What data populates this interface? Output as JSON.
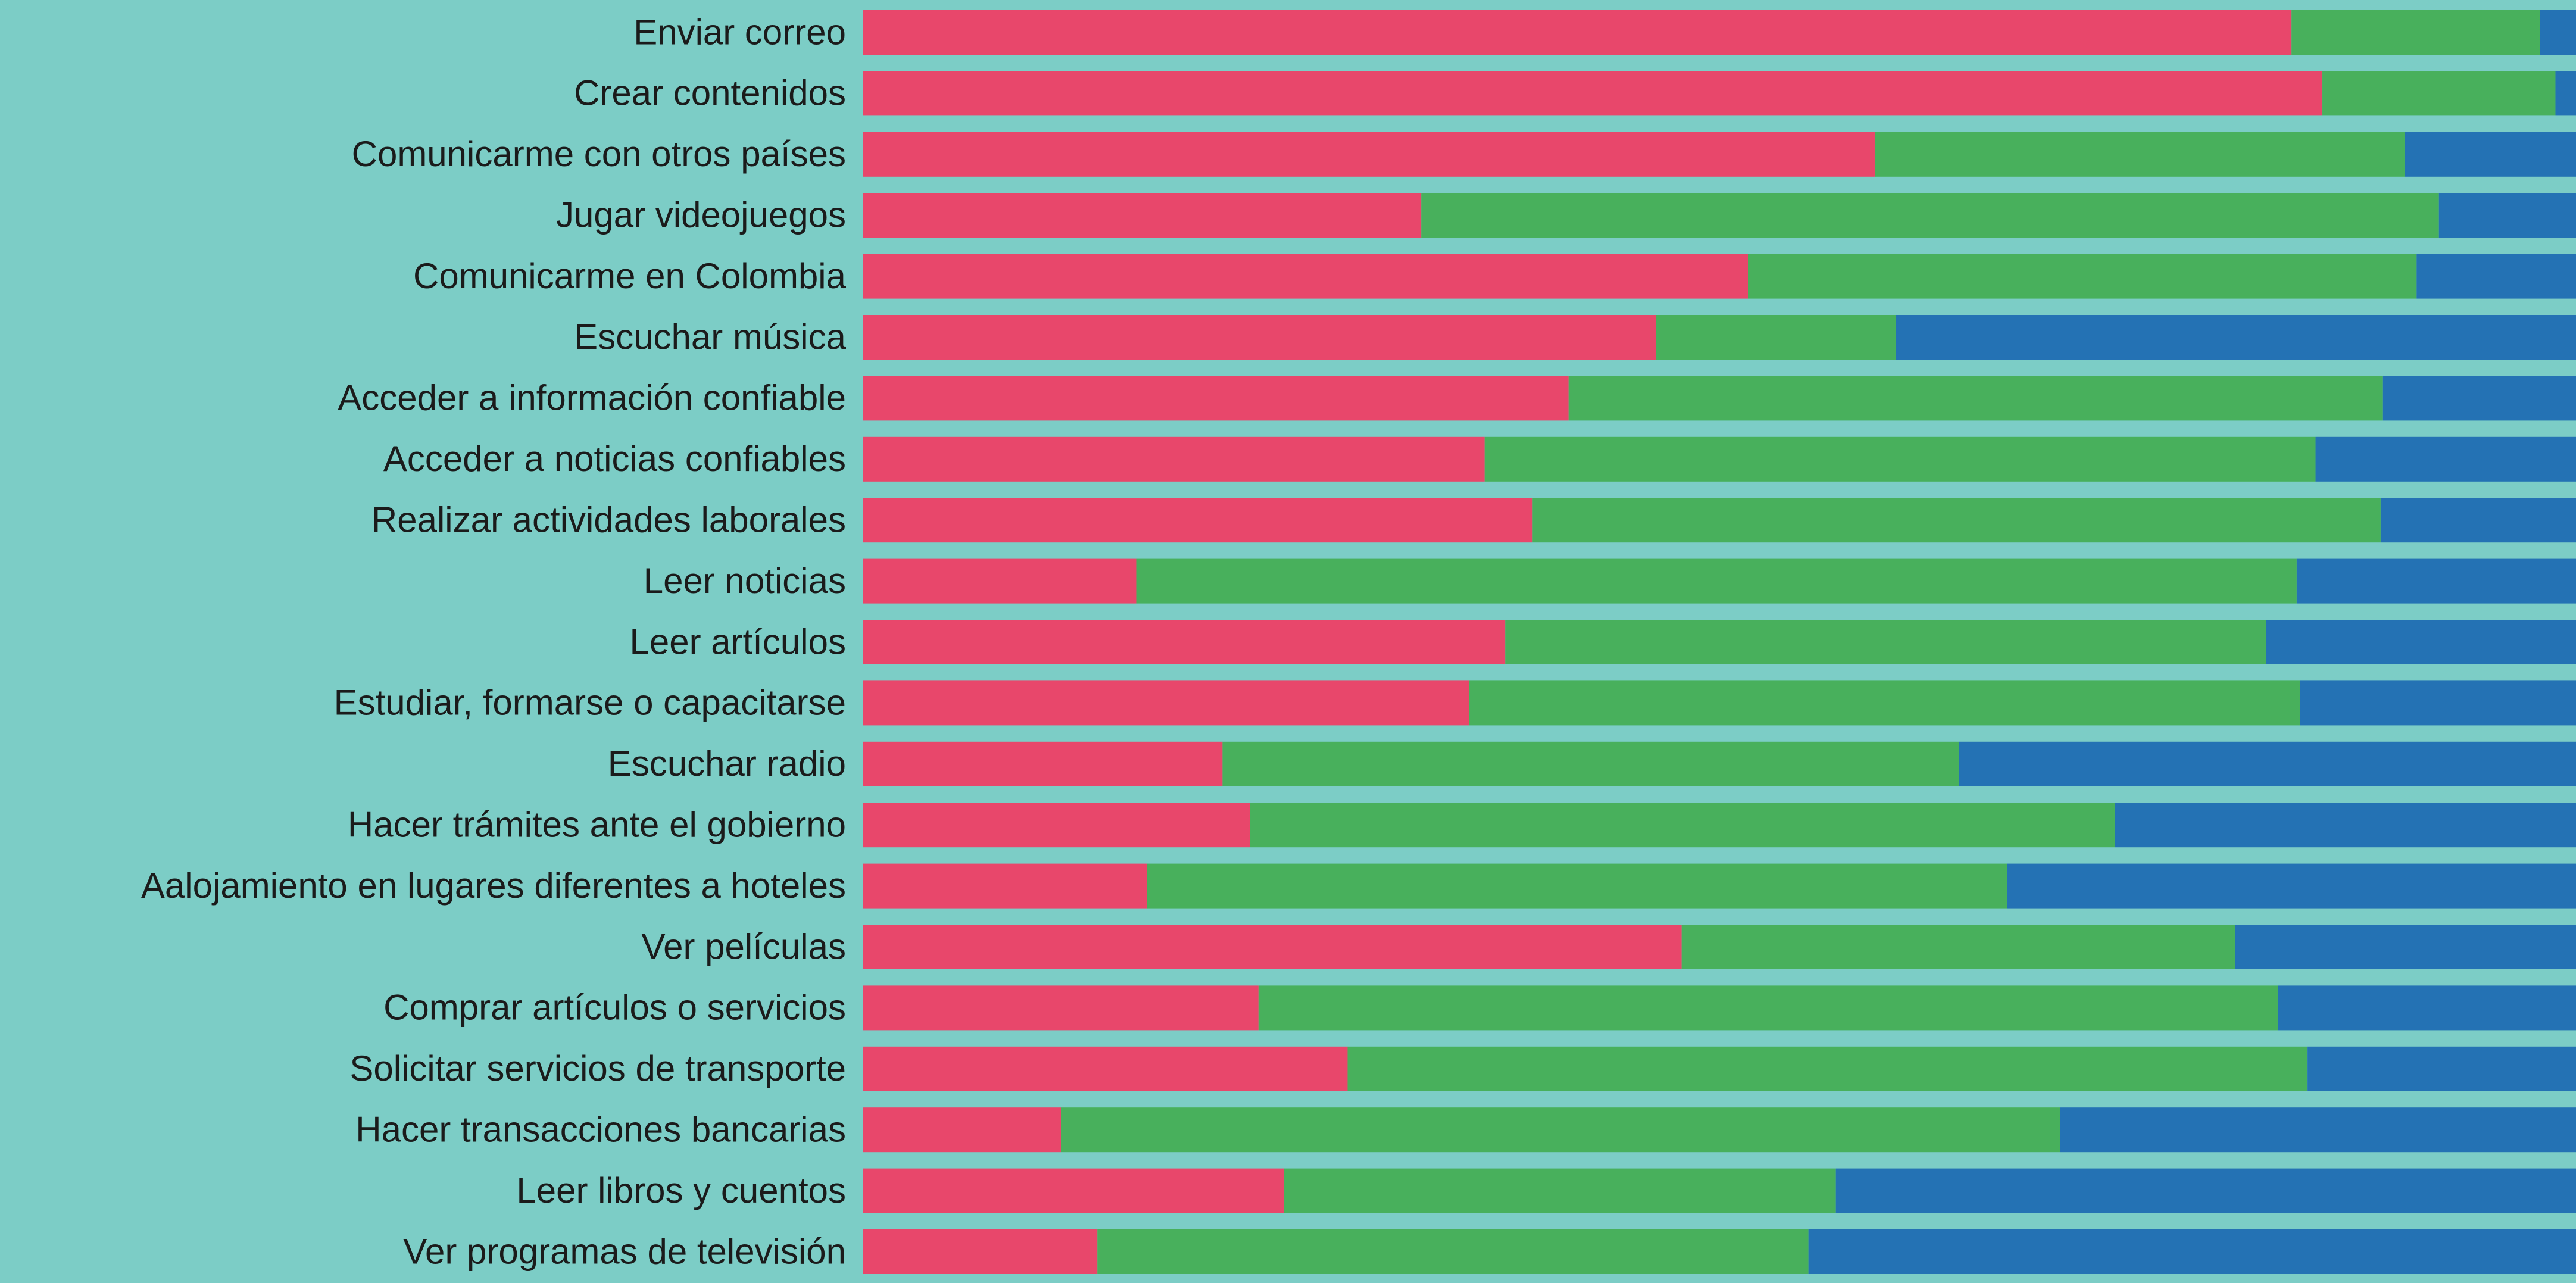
{
  "chart_data": {
    "type": "stacked-barh",
    "categories": [
      "Enviar correo",
      "Crear contenidos",
      "Comunicarme con otros países",
      "Jugar videojuegos",
      "Comunicarme en Colombia",
      "Escuchar música",
      "Acceder a información confiable",
      "Acceder a noticias confiables",
      "Realizar actividades laborales",
      "Leer noticias",
      "Leer artículos",
      "Estudiar, formarse o capacitarse",
      "Escuchar radio",
      "Hacer trámites ante el gobierno",
      "Aalojamiento en lugares diferentes a hoteles",
      "Ver películas",
      "Comprar artículos o servicios",
      "Solicitar servicios de transporte",
      "Hacer transacciones bancarias",
      "Leer libros y cuentos",
      "Ver programas de televisión"
    ],
    "series": [
      {
        "color": "#e8476b",
        "values": [
          83.4,
          85.2,
          59.1,
          32.6,
          51.7,
          46.3,
          41.2,
          36.3,
          39.1,
          16.0,
          37.5,
          35.4,
          21.0,
          22.6,
          16.6,
          47.8,
          23.1,
          28.3,
          11.6,
          24.6,
          13.7
        ]
      },
      {
        "color": "#48b05c",
        "values": [
          14.5,
          13.6,
          30.9,
          59.4,
          39.0,
          14.0,
          47.5,
          48.5,
          49.5,
          67.7,
          44.4,
          48.5,
          43.0,
          50.5,
          50.2,
          32.3,
          59.5,
          56.0,
          58.3,
          32.2,
          41.5
        ]
      },
      {
        "color": "#2472b4",
        "values": [
          2.1,
          1.2,
          10.0,
          8.0,
          9.3,
          39.7,
          11.3,
          15.2,
          11.4,
          16.3,
          18.1,
          16.1,
          36.0,
          26.9,
          33.2,
          19.9,
          17.4,
          15.7,
          30.1,
          43.2,
          44.8
        ]
      }
    ],
    "xlim": [
      0,
      100
    ]
  }
}
